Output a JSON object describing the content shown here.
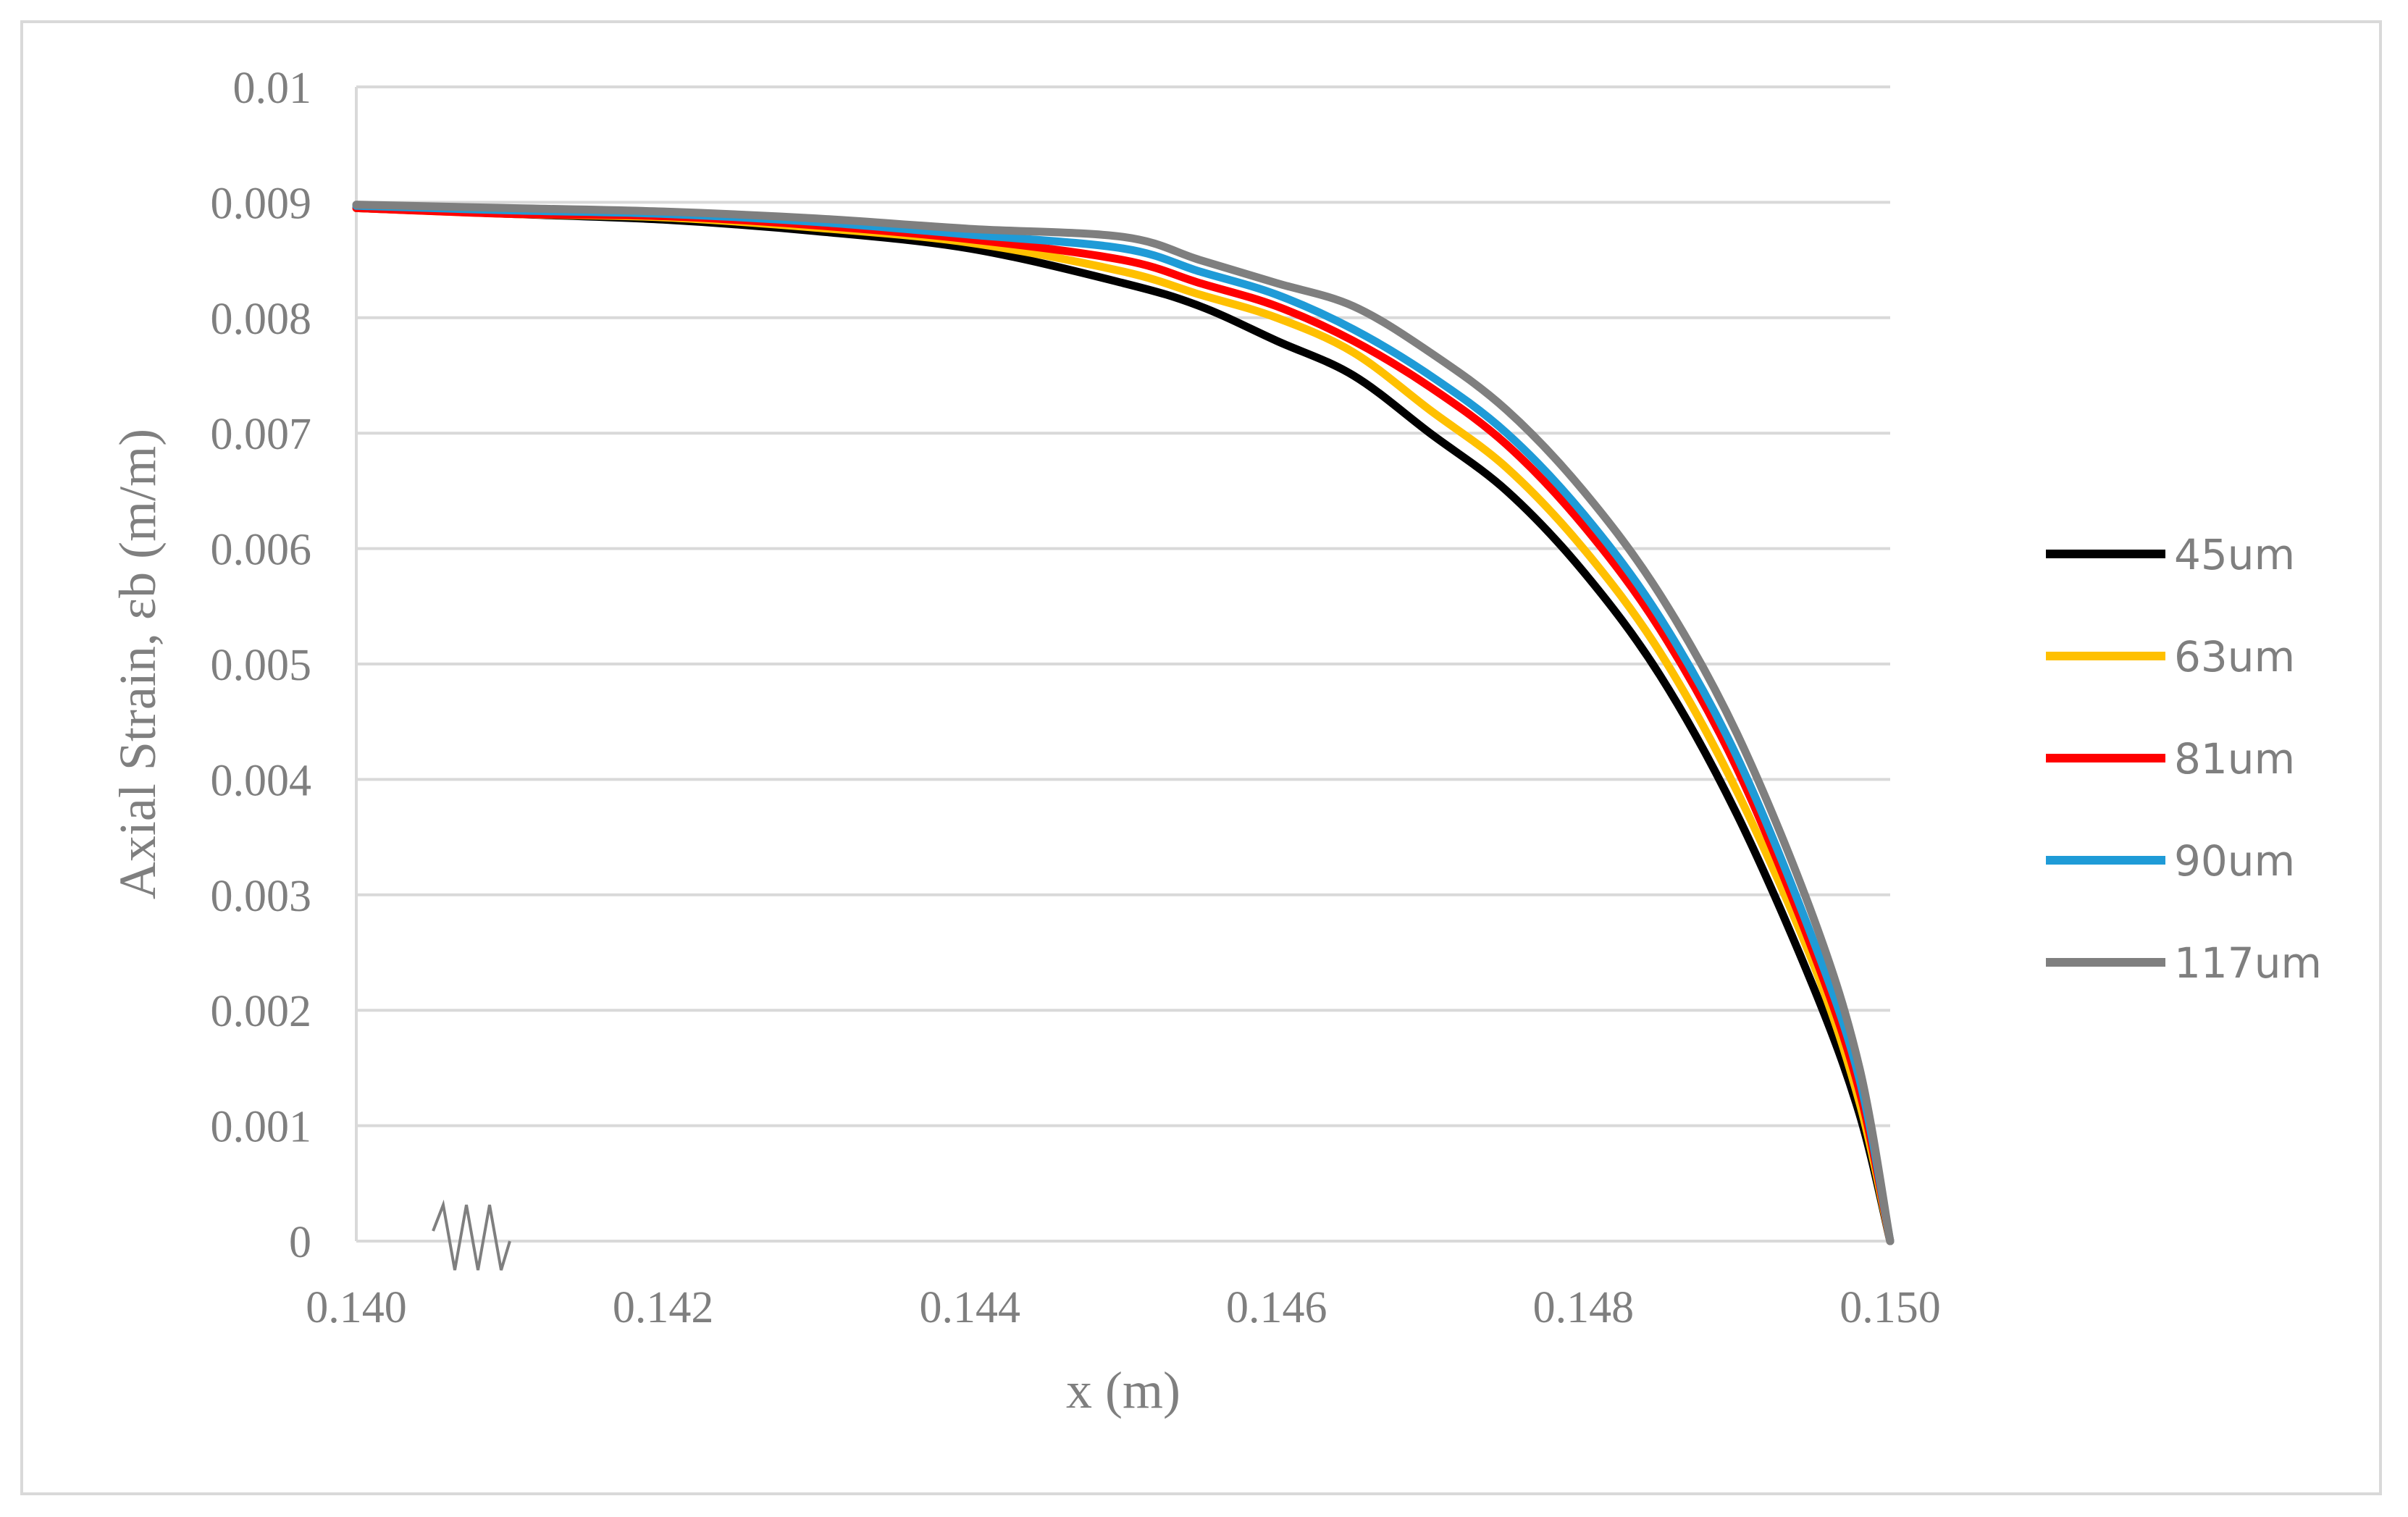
{
  "chart_data": {
    "type": "line",
    "xlabel": "x (m)",
    "ylabel": "Axial Strain, εb (m/m)",
    "xlim": [
      0.14,
      0.15
    ],
    "ylim": [
      0,
      0.01
    ],
    "x_ticks": [
      "0.140",
      "0.142",
      "0.144",
      "0.146",
      "0.148",
      "0.150"
    ],
    "y_ticks": [
      "0",
      "0.001",
      "0.002",
      "0.003",
      "0.004",
      "0.005",
      "0.006",
      "0.007",
      "0.008",
      "0.009",
      "0.01"
    ],
    "grid": "horizontal",
    "legend_position": "right",
    "axis_break": "x-axis near 0.141",
    "series": [
      {
        "name": "45um",
        "color": "#000000",
        "x": [
          0.14,
          0.141,
          0.142,
          0.143,
          0.144,
          0.145,
          0.1455,
          0.146,
          0.1465,
          0.147,
          0.1475,
          0.148,
          0.1485,
          0.149,
          0.1495,
          0.1498,
          0.15
        ],
        "y": [
          0.00895,
          0.0089,
          0.00885,
          0.00875,
          0.0086,
          0.0083,
          0.0081,
          0.0078,
          0.0075,
          0.007,
          0.0065,
          0.0058,
          0.0049,
          0.0037,
          0.0022,
          0.0011,
          0.0
        ]
      },
      {
        "name": "63um",
        "color": "#ffc000",
        "x": [
          0.14,
          0.141,
          0.142,
          0.143,
          0.144,
          0.145,
          0.1455,
          0.146,
          0.1465,
          0.147,
          0.1475,
          0.148,
          0.1485,
          0.149,
          0.1495,
          0.1498,
          0.15
        ],
        "y": [
          0.00895,
          0.0089,
          0.00887,
          0.00878,
          0.00865,
          0.0084,
          0.0082,
          0.008,
          0.0077,
          0.0072,
          0.0067,
          0.006,
          0.0051,
          0.0039,
          0.0024,
          0.0012,
          0.0
        ]
      },
      {
        "name": "81um",
        "color": "#ff0000",
        "x": [
          0.14,
          0.141,
          0.142,
          0.143,
          0.144,
          0.145,
          0.1455,
          0.146,
          0.1465,
          0.147,
          0.1475,
          0.148,
          0.1485,
          0.149,
          0.1495,
          0.1498,
          0.15
        ],
        "y": [
          0.00895,
          0.0089,
          0.00888,
          0.0088,
          0.00868,
          0.0085,
          0.0083,
          0.0081,
          0.0078,
          0.0074,
          0.0069,
          0.0062,
          0.0053,
          0.0041,
          0.0025,
          0.0013,
          0.0
        ]
      },
      {
        "name": "90um",
        "color": "#1f9bd7",
        "x": [
          0.14,
          0.141,
          0.142,
          0.143,
          0.144,
          0.145,
          0.1455,
          0.146,
          0.1465,
          0.147,
          0.1475,
          0.148,
          0.1485,
          0.149,
          0.1495,
          0.1498,
          0.15
        ],
        "y": [
          0.00897,
          0.00893,
          0.0089,
          0.00883,
          0.00872,
          0.0086,
          0.0084,
          0.0082,
          0.0079,
          0.0075,
          0.007,
          0.0063,
          0.0054,
          0.0042,
          0.0026,
          0.0014,
          0.0
        ]
      },
      {
        "name": "117um",
        "color": "#7f7f7f",
        "x": [
          0.14,
          0.141,
          0.142,
          0.143,
          0.144,
          0.145,
          0.1455,
          0.146,
          0.1465,
          0.147,
          0.1475,
          0.148,
          0.1485,
          0.149,
          0.1495,
          0.1498,
          0.15
        ],
        "y": [
          0.00898,
          0.00895,
          0.00892,
          0.00886,
          0.00877,
          0.0087,
          0.0085,
          0.0083,
          0.0081,
          0.0077,
          0.0072,
          0.0065,
          0.0056,
          0.0044,
          0.0028,
          0.0015,
          0.0
        ]
      }
    ]
  }
}
